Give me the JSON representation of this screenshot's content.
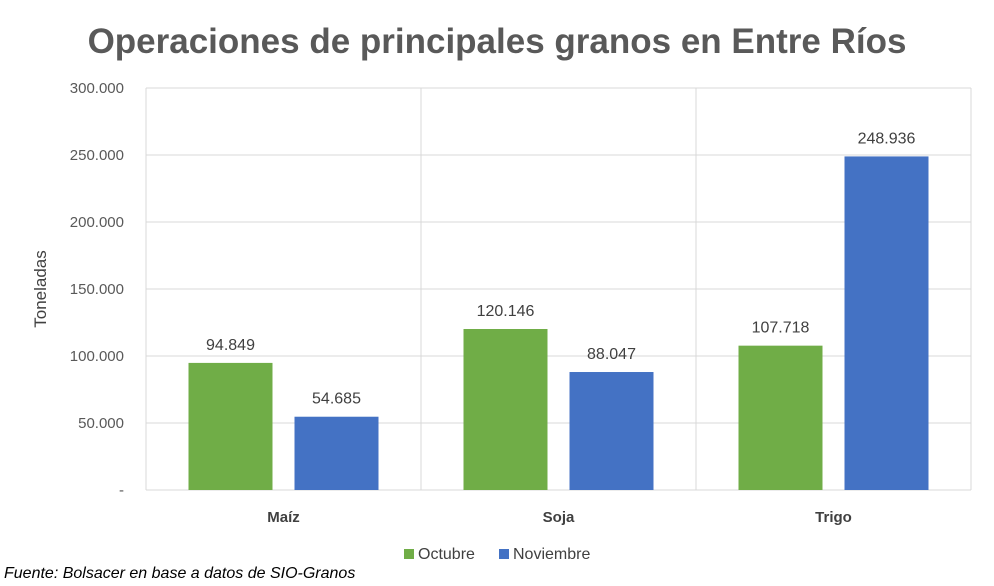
{
  "chart_data": {
    "type": "bar",
    "title": "Operaciones de principales granos en Entre Ríos",
    "xlabel": "",
    "ylabel": "Toneladas",
    "categories": [
      "Maíz",
      "Soja",
      "Trigo"
    ],
    "series": [
      {
        "name": "Octubre",
        "values": [
          94849,
          120146,
          107718
        ],
        "labels": [
          "94.849",
          "120.146",
          "107.718"
        ],
        "color": "#70ad47"
      },
      {
        "name": "Noviembre",
        "values": [
          54685,
          88047,
          248936
        ],
        "labels": [
          "54.685",
          "88.047",
          "248.936"
        ],
        "color": "#4472c4"
      }
    ],
    "ylim": [
      0,
      300000
    ],
    "yticks": [
      0,
      50000,
      100000,
      150000,
      200000,
      250000,
      300000
    ],
    "ytick_labels": [
      "-",
      "50.000",
      "100.000",
      "150.000",
      "200.000",
      "250.000",
      "300.000"
    ],
    "grid": true,
    "legend_position": "bottom"
  },
  "source_note": "Fuente: Bolsacer en base a datos de SIO-Granos"
}
